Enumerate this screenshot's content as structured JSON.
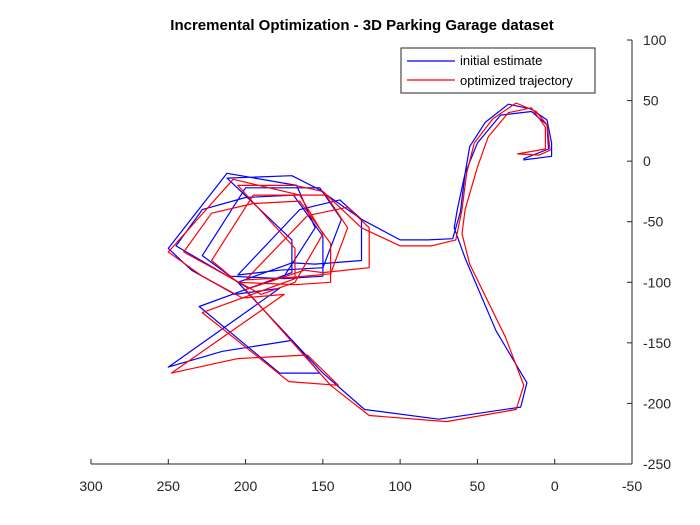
{
  "chart_data": {
    "type": "line",
    "title": "Incremental Optimization - 3D Parking Garage dataset",
    "xlabel": "",
    "ylabel": "",
    "xlim": [
      300,
      -50
    ],
    "ylim": [
      -250,
      100
    ],
    "x_direction": "reversed",
    "y_axis_location": "right",
    "x_ticks": [
      300,
      250,
      200,
      150,
      100,
      50,
      0,
      -50
    ],
    "x_tick_labels": [
      "300",
      "250",
      "200",
      "150",
      "100",
      "50",
      "0",
      "-50"
    ],
    "y_ticks": [
      100,
      50,
      0,
      -50,
      -100,
      -150,
      -200,
      -250
    ],
    "y_tick_labels": [
      "100",
      "50",
      "0",
      "-50",
      "-100",
      "-150",
      "-200",
      "-250"
    ],
    "grid": false,
    "legend_position": "top-right",
    "series": [
      {
        "name": "initial estimate",
        "color": "#0000ff",
        "path": [
          [
            20,
            1
          ],
          [
            2,
            4
          ],
          [
            2,
            15
          ],
          [
            5,
            34
          ],
          [
            15,
            43
          ],
          [
            30,
            47
          ],
          [
            45,
            32
          ],
          [
            55,
            12
          ],
          [
            58,
            -10
          ],
          [
            61,
            -42
          ],
          [
            66,
            -64
          ],
          [
            82,
            -65
          ],
          [
            100,
            -65
          ],
          [
            125,
            -48
          ],
          [
            153,
            -23
          ],
          [
            170,
            -12
          ],
          [
            212,
            -14
          ],
          [
            170,
            -65
          ],
          [
            170,
            -92
          ],
          [
            230,
            -120
          ],
          [
            178,
            -175
          ],
          [
            152,
            -175
          ],
          [
            170,
            -148
          ],
          [
            215,
            -157
          ],
          [
            250,
            -170
          ],
          [
            178,
            -105
          ],
          [
            207,
            -110
          ],
          [
            235,
            -90
          ],
          [
            250,
            -72
          ],
          [
            212,
            -10
          ],
          [
            167,
            -20
          ],
          [
            155,
            -55
          ],
          [
            175,
            -95
          ],
          [
            198,
            -105
          ],
          [
            245,
            -70
          ],
          [
            228,
            -40
          ],
          [
            200,
            -30
          ],
          [
            169,
            -28
          ],
          [
            150,
            -62
          ],
          [
            150,
            -95
          ],
          [
            175,
            -97
          ],
          [
            210,
            -95
          ],
          [
            228,
            -78
          ],
          [
            200,
            -22
          ],
          [
            152,
            -22
          ],
          [
            138,
            -48
          ],
          [
            150,
            -88
          ],
          [
            178,
            -90
          ],
          [
            205,
            -94
          ],
          [
            165,
            -40
          ],
          [
            139,
            -32
          ],
          [
            125,
            -48
          ],
          [
            125,
            -82
          ],
          [
            155,
            -85
          ],
          [
            170,
            -84
          ],
          [
            205,
            -100
          ],
          [
            150,
            -175
          ],
          [
            123,
            -205
          ],
          [
            75,
            -213
          ],
          [
            22,
            -203
          ],
          [
            18,
            -183
          ],
          [
            38,
            -140
          ],
          [
            58,
            -80
          ],
          [
            65,
            -55
          ],
          [
            63,
            -40
          ],
          [
            58,
            -10
          ],
          [
            50,
            15
          ],
          [
            35,
            38
          ],
          [
            15,
            41
          ],
          [
            5,
            30
          ],
          [
            4,
            10
          ],
          [
            20,
            2
          ]
        ]
      },
      {
        "name": "optimized trajectory",
        "color": "#ff0000",
        "path": [
          [
            24,
            6
          ],
          [
            10,
            5
          ],
          [
            3,
            9
          ],
          [
            5,
            30
          ],
          [
            12,
            41
          ],
          [
            25,
            48
          ],
          [
            40,
            35
          ],
          [
            52,
            15
          ],
          [
            57,
            -10
          ],
          [
            60,
            -40
          ],
          [
            64,
            -65
          ],
          [
            80,
            -70
          ],
          [
            100,
            -70
          ],
          [
            125,
            -55
          ],
          [
            150,
            -25
          ],
          [
            168,
            -20
          ],
          [
            205,
            -20
          ],
          [
            168,
            -72
          ],
          [
            168,
            -97
          ],
          [
            228,
            -125
          ],
          [
            172,
            -182
          ],
          [
            140,
            -185
          ],
          [
            160,
            -160
          ],
          [
            205,
            -163
          ],
          [
            248,
            -175
          ],
          [
            175,
            -110
          ],
          [
            202,
            -113
          ],
          [
            228,
            -95
          ],
          [
            250,
            -75
          ],
          [
            208,
            -15
          ],
          [
            165,
            -28
          ],
          [
            150,
            -60
          ],
          [
            168,
            -100
          ],
          [
            190,
            -110
          ],
          [
            240,
            -75
          ],
          [
            222,
            -43
          ],
          [
            195,
            -35
          ],
          [
            165,
            -33
          ],
          [
            145,
            -68
          ],
          [
            145,
            -100
          ],
          [
            168,
            -102
          ],
          [
            205,
            -100
          ],
          [
            222,
            -82
          ],
          [
            195,
            -28
          ],
          [
            148,
            -28
          ],
          [
            134,
            -55
          ],
          [
            145,
            -93
          ],
          [
            170,
            -96
          ],
          [
            200,
            -98
          ],
          [
            160,
            -45
          ],
          [
            134,
            -38
          ],
          [
            120,
            -55
          ],
          [
            120,
            -88
          ],
          [
            150,
            -92
          ],
          [
            162,
            -90
          ],
          [
            200,
            -106
          ],
          [
            145,
            -185
          ],
          [
            120,
            -210
          ],
          [
            70,
            -215
          ],
          [
            25,
            -205
          ],
          [
            20,
            -185
          ],
          [
            32,
            -145
          ],
          [
            55,
            -85
          ],
          [
            60,
            -60
          ],
          [
            58,
            -40
          ],
          [
            50,
            -5
          ],
          [
            43,
            20
          ],
          [
            30,
            40
          ],
          [
            15,
            44
          ],
          [
            6,
            28
          ],
          [
            6,
            10
          ],
          [
            24,
            6
          ]
        ]
      }
    ]
  }
}
